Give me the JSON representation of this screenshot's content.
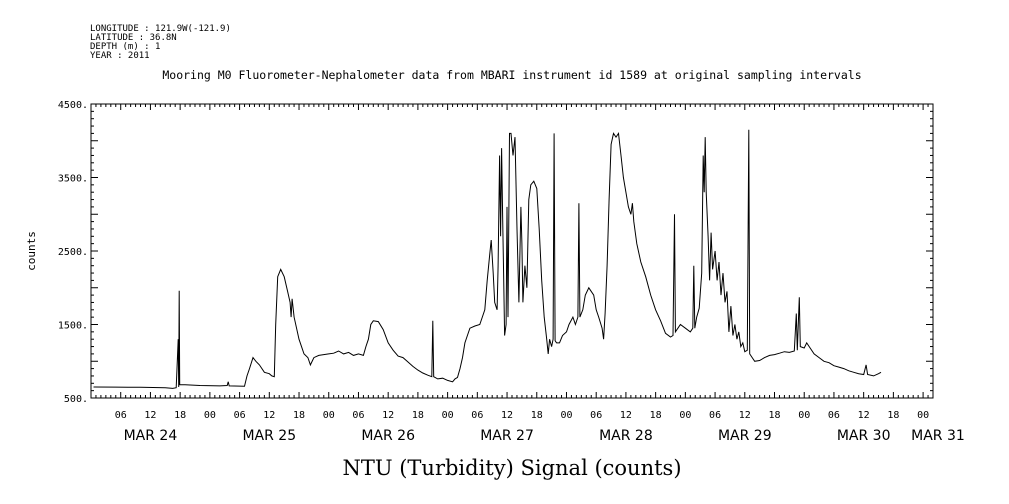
{
  "metadata": {
    "longitude": "LONGITUDE : 121.9W(-121.9)",
    "latitude": "LATITUDE : 36.8N",
    "depth": "DEPTH (m) : 1",
    "year": "YEAR : 2011"
  },
  "chart_data": {
    "type": "line",
    "title": "Mooring M0 Fluorometer-Nephalometer data from MBARI instrument id 1589 at original sampling intervals",
    "xlabel": "NTU (Turbidity) Signal (counts)",
    "ylabel": "counts",
    "ylim": [
      500,
      4500
    ],
    "yticks": [
      500,
      1500,
      2500,
      3500,
      4500
    ],
    "ytick_labels": [
      "500.",
      "1500.",
      "2500.",
      "3500.",
      "4500."
    ],
    "x_unit": "hours since 2011-03-24 00:00",
    "xlim": [
      0,
      170
    ],
    "hour_ticks": [
      {
        "x": 6,
        "label": "06"
      },
      {
        "x": 12,
        "label": "12"
      },
      {
        "x": 18,
        "label": "18"
      },
      {
        "x": 24,
        "label": "00"
      },
      {
        "x": 30,
        "label": "06"
      },
      {
        "x": 36,
        "label": "12"
      },
      {
        "x": 42,
        "label": "18"
      },
      {
        "x": 48,
        "label": "00"
      },
      {
        "x": 54,
        "label": "06"
      },
      {
        "x": 60,
        "label": "12"
      },
      {
        "x": 66,
        "label": "18"
      },
      {
        "x": 72,
        "label": "00"
      },
      {
        "x": 78,
        "label": "06"
      },
      {
        "x": 84,
        "label": "12"
      },
      {
        "x": 90,
        "label": "18"
      },
      {
        "x": 96,
        "label": "00"
      },
      {
        "x": 102,
        "label": "06"
      },
      {
        "x": 108,
        "label": "12"
      },
      {
        "x": 114,
        "label": "18"
      },
      {
        "x": 120,
        "label": "00"
      },
      {
        "x": 126,
        "label": "06"
      },
      {
        "x": 132,
        "label": "12"
      },
      {
        "x": 138,
        "label": "18"
      },
      {
        "x": 144,
        "label": "00"
      },
      {
        "x": 150,
        "label": "06"
      },
      {
        "x": 156,
        "label": "12"
      },
      {
        "x": 162,
        "label": "18"
      },
      {
        "x": 168,
        "label": "00"
      }
    ],
    "day_labels": [
      {
        "x": 12,
        "label": "MAR 24"
      },
      {
        "x": 36,
        "label": "MAR 25"
      },
      {
        "x": 60,
        "label": "MAR 26"
      },
      {
        "x": 84,
        "label": "MAR 27"
      },
      {
        "x": 108,
        "label": "MAR 28"
      },
      {
        "x": 132,
        "label": "MAR 29"
      },
      {
        "x": 156,
        "label": "MAR 30"
      },
      {
        "x": 171,
        "label": "MAR 31"
      }
    ],
    "series": [
      {
        "values": [
          [
            0.5,
            650
          ],
          [
            5,
            648
          ],
          [
            10,
            645
          ],
          [
            15,
            640
          ],
          [
            16.5,
            630
          ],
          [
            17.2,
            640
          ],
          [
            17.6,
            1300
          ],
          [
            17.7,
            650
          ],
          [
            17.8,
            1960
          ],
          [
            17.9,
            680
          ],
          [
            19,
            680
          ],
          [
            22,
            670
          ],
          [
            26,
            665
          ],
          [
            27.5,
            670
          ],
          [
            27.7,
            720
          ],
          [
            27.9,
            665
          ],
          [
            31,
            660
          ],
          [
            31.5,
            800
          ],
          [
            32,
            900
          ],
          [
            32.7,
            1050
          ],
          [
            33.3,
            1000
          ],
          [
            34,
            950
          ],
          [
            35,
            850
          ],
          [
            36,
            830
          ],
          [
            36.5,
            800
          ],
          [
            37,
            790
          ],
          [
            37.3,
            1500
          ],
          [
            37.7,
            2150
          ],
          [
            38.3,
            2250
          ],
          [
            39,
            2150
          ],
          [
            39.7,
            1950
          ],
          [
            40.2,
            1800
          ],
          [
            40.4,
            1600
          ],
          [
            40.6,
            1850
          ],
          [
            41,
            1600
          ],
          [
            42,
            1300
          ],
          [
            43,
            1100
          ],
          [
            43.8,
            1050
          ],
          [
            44.3,
            950
          ],
          [
            45,
            1050
          ],
          [
            46,
            1080
          ],
          [
            48,
            1100
          ],
          [
            49,
            1110
          ],
          [
            50,
            1140
          ],
          [
            51,
            1100
          ],
          [
            52,
            1120
          ],
          [
            53,
            1080
          ],
          [
            54,
            1100
          ],
          [
            55,
            1080
          ],
          [
            55.5,
            1200
          ],
          [
            56,
            1300
          ],
          [
            56.5,
            1500
          ],
          [
            57,
            1550
          ],
          [
            58,
            1540
          ],
          [
            59,
            1430
          ],
          [
            60,
            1250
          ],
          [
            61,
            1150
          ],
          [
            62,
            1070
          ],
          [
            63,
            1050
          ],
          [
            64,
            990
          ],
          [
            65,
            930
          ],
          [
            66,
            880
          ],
          [
            67,
            840
          ],
          [
            68,
            810
          ],
          [
            68.8,
            790
          ],
          [
            69,
            1550
          ],
          [
            69.2,
            790
          ],
          [
            70,
            760
          ],
          [
            71,
            770
          ],
          [
            72,
            740
          ],
          [
            73,
            720
          ],
          [
            73.5,
            760
          ],
          [
            74,
            780
          ],
          [
            74.5,
            900
          ],
          [
            75,
            1050
          ],
          [
            75.5,
            1250
          ],
          [
            76,
            1350
          ],
          [
            76.5,
            1450
          ],
          [
            77.5,
            1480
          ],
          [
            78.5,
            1500
          ],
          [
            79.5,
            1700
          ],
          [
            80,
            2100
          ],
          [
            80.5,
            2450
          ],
          [
            80.8,
            2650
          ],
          [
            81.2,
            2200
          ],
          [
            81.5,
            1800
          ],
          [
            82,
            1700
          ],
          [
            82.2,
            2300
          ],
          [
            82.5,
            3800
          ],
          [
            82.7,
            2700
          ],
          [
            82.9,
            3900
          ],
          [
            83.1,
            3000
          ],
          [
            83.3,
            2200
          ],
          [
            83.5,
            1350
          ],
          [
            83.8,
            1500
          ],
          [
            84.0,
            3100
          ],
          [
            84.2,
            1600
          ],
          [
            84.5,
            4100
          ],
          [
            84.8,
            4100
          ],
          [
            85.2,
            3800
          ],
          [
            85.6,
            4050
          ],
          [
            86,
            2800
          ],
          [
            86.4,
            1800
          ],
          [
            86.8,
            3100
          ],
          [
            87,
            2600
          ],
          [
            87.2,
            1800
          ],
          [
            87.6,
            2300
          ],
          [
            88,
            2000
          ],
          [
            88.4,
            3200
          ],
          [
            88.8,
            3400
          ],
          [
            89.4,
            3450
          ],
          [
            90,
            3350
          ],
          [
            90.5,
            2800
          ],
          [
            91,
            2100
          ],
          [
            91.5,
            1600
          ],
          [
            92,
            1300
          ],
          [
            92.3,
            1100
          ],
          [
            92.6,
            1300
          ],
          [
            93,
            1200
          ],
          [
            93.3,
            1300
          ],
          [
            93.5,
            4100
          ],
          [
            93.7,
            1280
          ],
          [
            94,
            1250
          ],
          [
            94.6,
            1250
          ],
          [
            95.2,
            1350
          ],
          [
            96,
            1400
          ],
          [
            96.5,
            1500
          ],
          [
            97.3,
            1600
          ],
          [
            97.8,
            1500
          ],
          [
            98.3,
            1600
          ],
          [
            98.5,
            3150
          ],
          [
            98.7,
            1600
          ],
          [
            99.3,
            1700
          ],
          [
            99.8,
            1900
          ],
          [
            100.5,
            2000
          ],
          [
            101.5,
            1900
          ],
          [
            102,
            1700
          ],
          [
            102.5,
            1600
          ],
          [
            103.2,
            1450
          ],
          [
            103.5,
            1300
          ],
          [
            103.8,
            1650
          ],
          [
            104.2,
            2300
          ],
          [
            104.6,
            3200
          ],
          [
            105,
            3950
          ],
          [
            105.5,
            4100
          ],
          [
            106,
            4050
          ],
          [
            106.5,
            4100
          ],
          [
            107,
            3800
          ],
          [
            107.5,
            3500
          ],
          [
            108,
            3300
          ],
          [
            108.5,
            3100
          ],
          [
            109,
            3000
          ],
          [
            109.3,
            3150
          ],
          [
            109.6,
            2900
          ],
          [
            110.2,
            2600
          ],
          [
            111,
            2350
          ],
          [
            112,
            2150
          ],
          [
            113,
            1900
          ],
          [
            114,
            1700
          ],
          [
            115,
            1550
          ],
          [
            116,
            1380
          ],
          [
            117,
            1330
          ],
          [
            117.5,
            1350
          ],
          [
            117.8,
            3000
          ],
          [
            118,
            1400
          ],
          [
            118.5,
            1450
          ],
          [
            119,
            1500
          ],
          [
            120,
            1450
          ],
          [
            121,
            1400
          ],
          [
            121.5,
            1450
          ],
          [
            121.7,
            2300
          ],
          [
            121.9,
            1450
          ],
          [
            122.3,
            1600
          ],
          [
            122.8,
            1720
          ],
          [
            123.3,
            2200
          ],
          [
            123.6,
            3800
          ],
          [
            123.8,
            3300
          ],
          [
            124,
            4050
          ],
          [
            124.2,
            3300
          ],
          [
            124.6,
            2700
          ],
          [
            124.9,
            2100
          ],
          [
            125.2,
            2750
          ],
          [
            125.5,
            2250
          ],
          [
            126,
            2500
          ],
          [
            126.4,
            2100
          ],
          [
            126.8,
            2350
          ],
          [
            127.2,
            1900
          ],
          [
            127.6,
            2200
          ],
          [
            128,
            1800
          ],
          [
            128.4,
            1950
          ],
          [
            128.8,
            1400
          ],
          [
            129.2,
            1750
          ],
          [
            129.6,
            1350
          ],
          [
            130,
            1500
          ],
          [
            130.4,
            1300
          ],
          [
            130.8,
            1400
          ],
          [
            131.2,
            1200
          ],
          [
            131.6,
            1250
          ],
          [
            132,
            1130
          ],
          [
            132.5,
            1150
          ],
          [
            132.8,
            4150
          ],
          [
            133,
            1100
          ],
          [
            133.5,
            1050
          ],
          [
            134,
            1000
          ],
          [
            135,
            1010
          ],
          [
            136,
            1050
          ],
          [
            137,
            1080
          ],
          [
            138,
            1090
          ],
          [
            139,
            1110
          ],
          [
            140,
            1130
          ],
          [
            141,
            1120
          ],
          [
            142,
            1140
          ],
          [
            142.4,
            1650
          ],
          [
            142.6,
            1150
          ],
          [
            143,
            1870
          ],
          [
            143.2,
            1200
          ],
          [
            144,
            1180
          ],
          [
            144.5,
            1250
          ],
          [
            145,
            1200
          ],
          [
            146,
            1100
          ],
          [
            147,
            1050
          ],
          [
            148,
            1000
          ],
          [
            149,
            980
          ],
          [
            150,
            940
          ],
          [
            151,
            920
          ],
          [
            152,
            900
          ],
          [
            153,
            870
          ],
          [
            154,
            850
          ],
          [
            155,
            830
          ],
          [
            156,
            820
          ],
          [
            156.5,
            950
          ],
          [
            156.8,
            820
          ],
          [
            158,
            800
          ],
          [
            159,
            830
          ],
          [
            159.5,
            850
          ]
        ]
      }
    ]
  }
}
